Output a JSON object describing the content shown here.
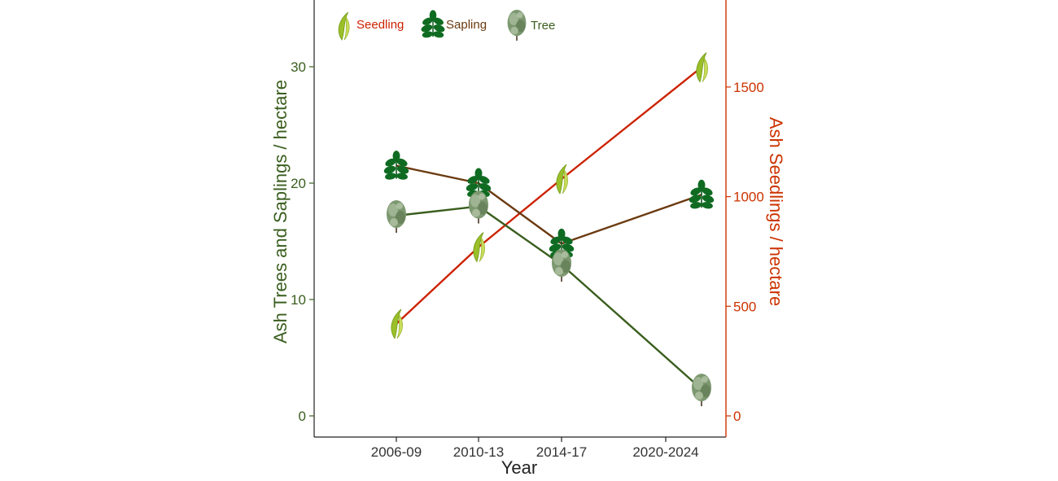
{
  "chart_data": {
    "type": "line",
    "xlabel": "Year",
    "categories": [
      "2006-09",
      "2010-13",
      "2014-17",
      "2020-2024"
    ],
    "y_left": {
      "label": "Ash Trees and Saplings / hectare",
      "lim": [
        0,
        35
      ],
      "ticks": [
        "0",
        "10",
        "20",
        "30"
      ]
    },
    "y_right": {
      "label": "Ash Seedlings / hectare",
      "lim": [
        0,
        1850
      ],
      "ticks": [
        "0",
        "500",
        "1000",
        "1500"
      ]
    },
    "series": [
      {
        "name": "Seedling",
        "axis": "right",
        "values": [
          420,
          770,
          1080,
          1590
        ]
      },
      {
        "name": "Sapling",
        "axis": "left",
        "values": [
          21.5,
          20,
          14.8,
          19
        ]
      },
      {
        "name": "Tree",
        "axis": "left",
        "values": [
          17.2,
          18,
          13,
          2.3
        ]
      }
    ],
    "colors": {
      "Seedling": "#cc2200",
      "Sapling": "#6b3a10",
      "Tree": "#3a5e1e",
      "left_axis": "#3a5e1e",
      "right_axis": "#cc3300"
    },
    "grid": false,
    "legend": "top-left"
  }
}
